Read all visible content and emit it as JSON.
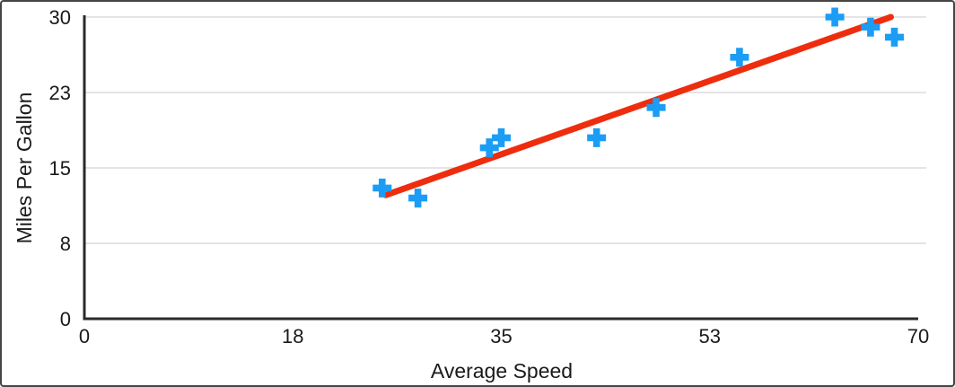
{
  "window": {
    "border_color": "#454545",
    "background": "#ffffff"
  },
  "chart_data": {
    "type": "scatter",
    "title": "",
    "xlabel": "Average Speed",
    "ylabel": "Miles Per Gallon",
    "xlim": [
      0,
      70
    ],
    "ylim": [
      0,
      30
    ],
    "x_ticks": {
      "values": [
        0,
        17.5,
        35,
        52.5,
        70
      ],
      "labels": [
        "0",
        "18",
        "35",
        "53",
        "70"
      ]
    },
    "y_ticks": {
      "values": [
        0,
        7.5,
        15,
        22.5,
        30
      ],
      "labels": [
        "0",
        "8",
        "15",
        "23",
        "30"
      ]
    },
    "grid": "horizontal",
    "legend": "none",
    "colors": {
      "marker": "#1B9DF5",
      "trendline": "#EE2D0F",
      "axis": "#2A2A2A",
      "gridline": "#DCDCDC",
      "text": "#1A1A1A"
    },
    "series": [
      {
        "name": "Miles Per Gallon",
        "marker": "plus",
        "points": [
          [
            25,
            13
          ],
          [
            28,
            12
          ],
          [
            34,
            17
          ],
          [
            35,
            18
          ],
          [
            43,
            18
          ],
          [
            48,
            21
          ],
          [
            55,
            26
          ],
          [
            63,
            30
          ],
          [
            66,
            29
          ],
          [
            68,
            28
          ]
        ]
      }
    ],
    "trendline": {
      "type": "linear",
      "x1": 25.3,
      "y1": 12.3,
      "x2": 67.7,
      "y2": 30.0
    }
  }
}
